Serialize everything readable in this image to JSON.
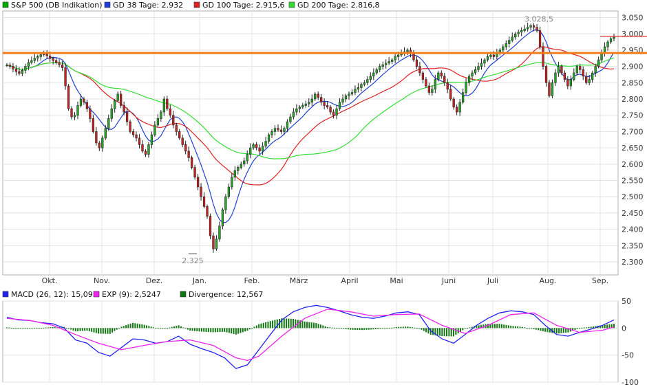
{
  "chart_data": [
    {
      "type": "candlestick",
      "legend": [
        {
          "label": "S&P 500 (DB Indikation)",
          "color": "#00aa00"
        },
        {
          "label": "GD 38 Tage: 2.932",
          "color": "#1f3fd6"
        },
        {
          "label": "GD 100 Tage: 2.915,6",
          "color": "#dd2222"
        },
        {
          "label": "GD 200 Tage: 2.816,8",
          "color": "#33dd33"
        }
      ],
      "y_ticks": [
        "3.050",
        "3.000",
        "2.950",
        "2.900",
        "2.850",
        "2.800",
        "2.750",
        "2.700",
        "2.650",
        "2.600",
        "2.550",
        "2.500",
        "2.450",
        "2.400",
        "2.350",
        "2.300"
      ],
      "ylim": [
        2260,
        3070
      ],
      "months": [
        "Okt.",
        "Nov.",
        "Dez.",
        "Jan.",
        "Feb.",
        "März",
        "April",
        "Mai",
        "Juni",
        "Juli",
        "Aug.",
        "Sep."
      ],
      "annotations": {
        "high_label": "3.028,5",
        "high_value": 3028.5,
        "low_label": "2.325",
        "low_value": 2325
      },
      "horizontal_line": {
        "value": 2941,
        "color": "#f07d1a"
      },
      "resistance_line": {
        "value": 2992,
        "color": "#e23434"
      },
      "closes": [
        2904,
        2900,
        2892,
        2884,
        2878,
        2888,
        2900,
        2912,
        2918,
        2925,
        2930,
        2936,
        2938,
        2932,
        2924,
        2918,
        2912,
        2905,
        2896,
        2840,
        2770,
        2745,
        2750,
        2780,
        2800,
        2790,
        2770,
        2740,
        2700,
        2665,
        2650,
        2680,
        2710,
        2740,
        2770,
        2795,
        2815,
        2780,
        2760,
        2730,
        2700,
        2690,
        2680,
        2660,
        2640,
        2630,
        2660,
        2690,
        2720,
        2740,
        2760,
        2800,
        2770,
        2750,
        2720,
        2700,
        2680,
        2660,
        2640,
        2620,
        2590,
        2560,
        2530,
        2500,
        2470,
        2440,
        2380,
        2340,
        2370,
        2410,
        2460,
        2500,
        2530,
        2560,
        2580,
        2590,
        2600,
        2610,
        2630,
        2650,
        2660,
        2650,
        2640,
        2655,
        2670,
        2690,
        2700,
        2710,
        2705,
        2700,
        2710,
        2730,
        2745,
        2760,
        2770,
        2775,
        2780,
        2785,
        2790,
        2800,
        2815,
        2805,
        2790,
        2780,
        2775,
        2760,
        2750,
        2770,
        2790,
        2800,
        2810,
        2815,
        2820,
        2830,
        2835,
        2845,
        2850,
        2860,
        2870,
        2880,
        2890,
        2900,
        2905,
        2910,
        2915,
        2920,
        2930,
        2935,
        2940,
        2945,
        2950,
        2940,
        2920,
        2900,
        2880,
        2860,
        2840,
        2820,
        2830,
        2860,
        2880,
        2870,
        2850,
        2830,
        2800,
        2775,
        2760,
        2790,
        2820,
        2850,
        2870,
        2880,
        2890,
        2900,
        2910,
        2920,
        2930,
        2935,
        2930,
        2940,
        2950,
        2960,
        2970,
        2980,
        2990,
        3000,
        3005,
        3010,
        3015,
        3020,
        3025,
        3020,
        3010,
        2960,
        2900,
        2850,
        2810,
        2850,
        2880,
        2900,
        2880,
        2860,
        2840,
        2860,
        2880,
        2900,
        2890,
        2870,
        2850,
        2860,
        2880,
        2900,
        2920,
        2940,
        2960,
        2975,
        2985,
        2990
      ]
    },
    {
      "type": "macd",
      "legend": [
        {
          "label": "MACD (26, 12): 15,091",
          "color": "#2222ee"
        },
        {
          "label": "EXP (9): 2,5247",
          "color": "#ee22ee"
        },
        {
          "label": "Divergence: 12,567",
          "color": "#117711"
        }
      ],
      "y_ticks": [
        "50",
        "0",
        "-50",
        "-100"
      ],
      "ylim": [
        -100,
        50
      ],
      "macd_points": [
        [
          0,
          20
        ],
        [
          5,
          15
        ],
        [
          10,
          14
        ],
        [
          15,
          10
        ],
        [
          20,
          8
        ],
        [
          25,
          0
        ],
        [
          30,
          -22
        ],
        [
          35,
          -28
        ],
        [
          40,
          -45
        ],
        [
          45,
          -52
        ],
        [
          50,
          -36
        ],
        [
          55,
          -20
        ],
        [
          60,
          -22
        ],
        [
          65,
          -28
        ],
        [
          70,
          -25
        ],
        [
          75,
          -15
        ],
        [
          80,
          -30
        ],
        [
          85,
          -38
        ],
        [
          90,
          -45
        ],
        [
          95,
          -55
        ],
        [
          100,
          -75
        ],
        [
          105,
          -68
        ],
        [
          110,
          -40
        ],
        [
          115,
          -12
        ],
        [
          120,
          15
        ],
        [
          125,
          30
        ],
        [
          130,
          38
        ],
        [
          135,
          42
        ],
        [
          140,
          38
        ],
        [
          145,
          32
        ],
        [
          150,
          25
        ],
        [
          155,
          20
        ],
        [
          160,
          18
        ],
        [
          165,
          22
        ],
        [
          170,
          28
        ],
        [
          175,
          30
        ],
        [
          180,
          25
        ],
        [
          185,
          -5
        ],
        [
          190,
          -20
        ],
        [
          195,
          -28
        ],
        [
          200,
          -12
        ],
        [
          205,
          5
        ],
        [
          210,
          18
        ],
        [
          215,
          28
        ],
        [
          220,
          32
        ],
        [
          225,
          30
        ],
        [
          230,
          25
        ],
        [
          235,
          5
        ],
        [
          240,
          -12
        ],
        [
          245,
          -15
        ],
        [
          250,
          -8
        ],
        [
          255,
          -2
        ],
        [
          260,
          5
        ],
        [
          265,
          15
        ]
      ],
      "exp_points": [
        [
          0,
          18
        ],
        [
          10,
          14
        ],
        [
          20,
          5
        ],
        [
          30,
          -12
        ],
        [
          40,
          -28
        ],
        [
          50,
          -40
        ],
        [
          60,
          -32
        ],
        [
          70,
          -25
        ],
        [
          80,
          -22
        ],
        [
          90,
          -32
        ],
        [
          100,
          -55
        ],
        [
          105,
          -60
        ],
        [
          110,
          -52
        ],
        [
          120,
          -15
        ],
        [
          130,
          18
        ],
        [
          140,
          35
        ],
        [
          150,
          30
        ],
        [
          160,
          22
        ],
        [
          170,
          25
        ],
        [
          180,
          26
        ],
        [
          190,
          5
        ],
        [
          200,
          -10
        ],
        [
          210,
          5
        ],
        [
          220,
          25
        ],
        [
          230,
          28
        ],
        [
          240,
          5
        ],
        [
          250,
          -8
        ],
        [
          260,
          -4
        ],
        [
          265,
          2
        ]
      ]
    }
  ]
}
